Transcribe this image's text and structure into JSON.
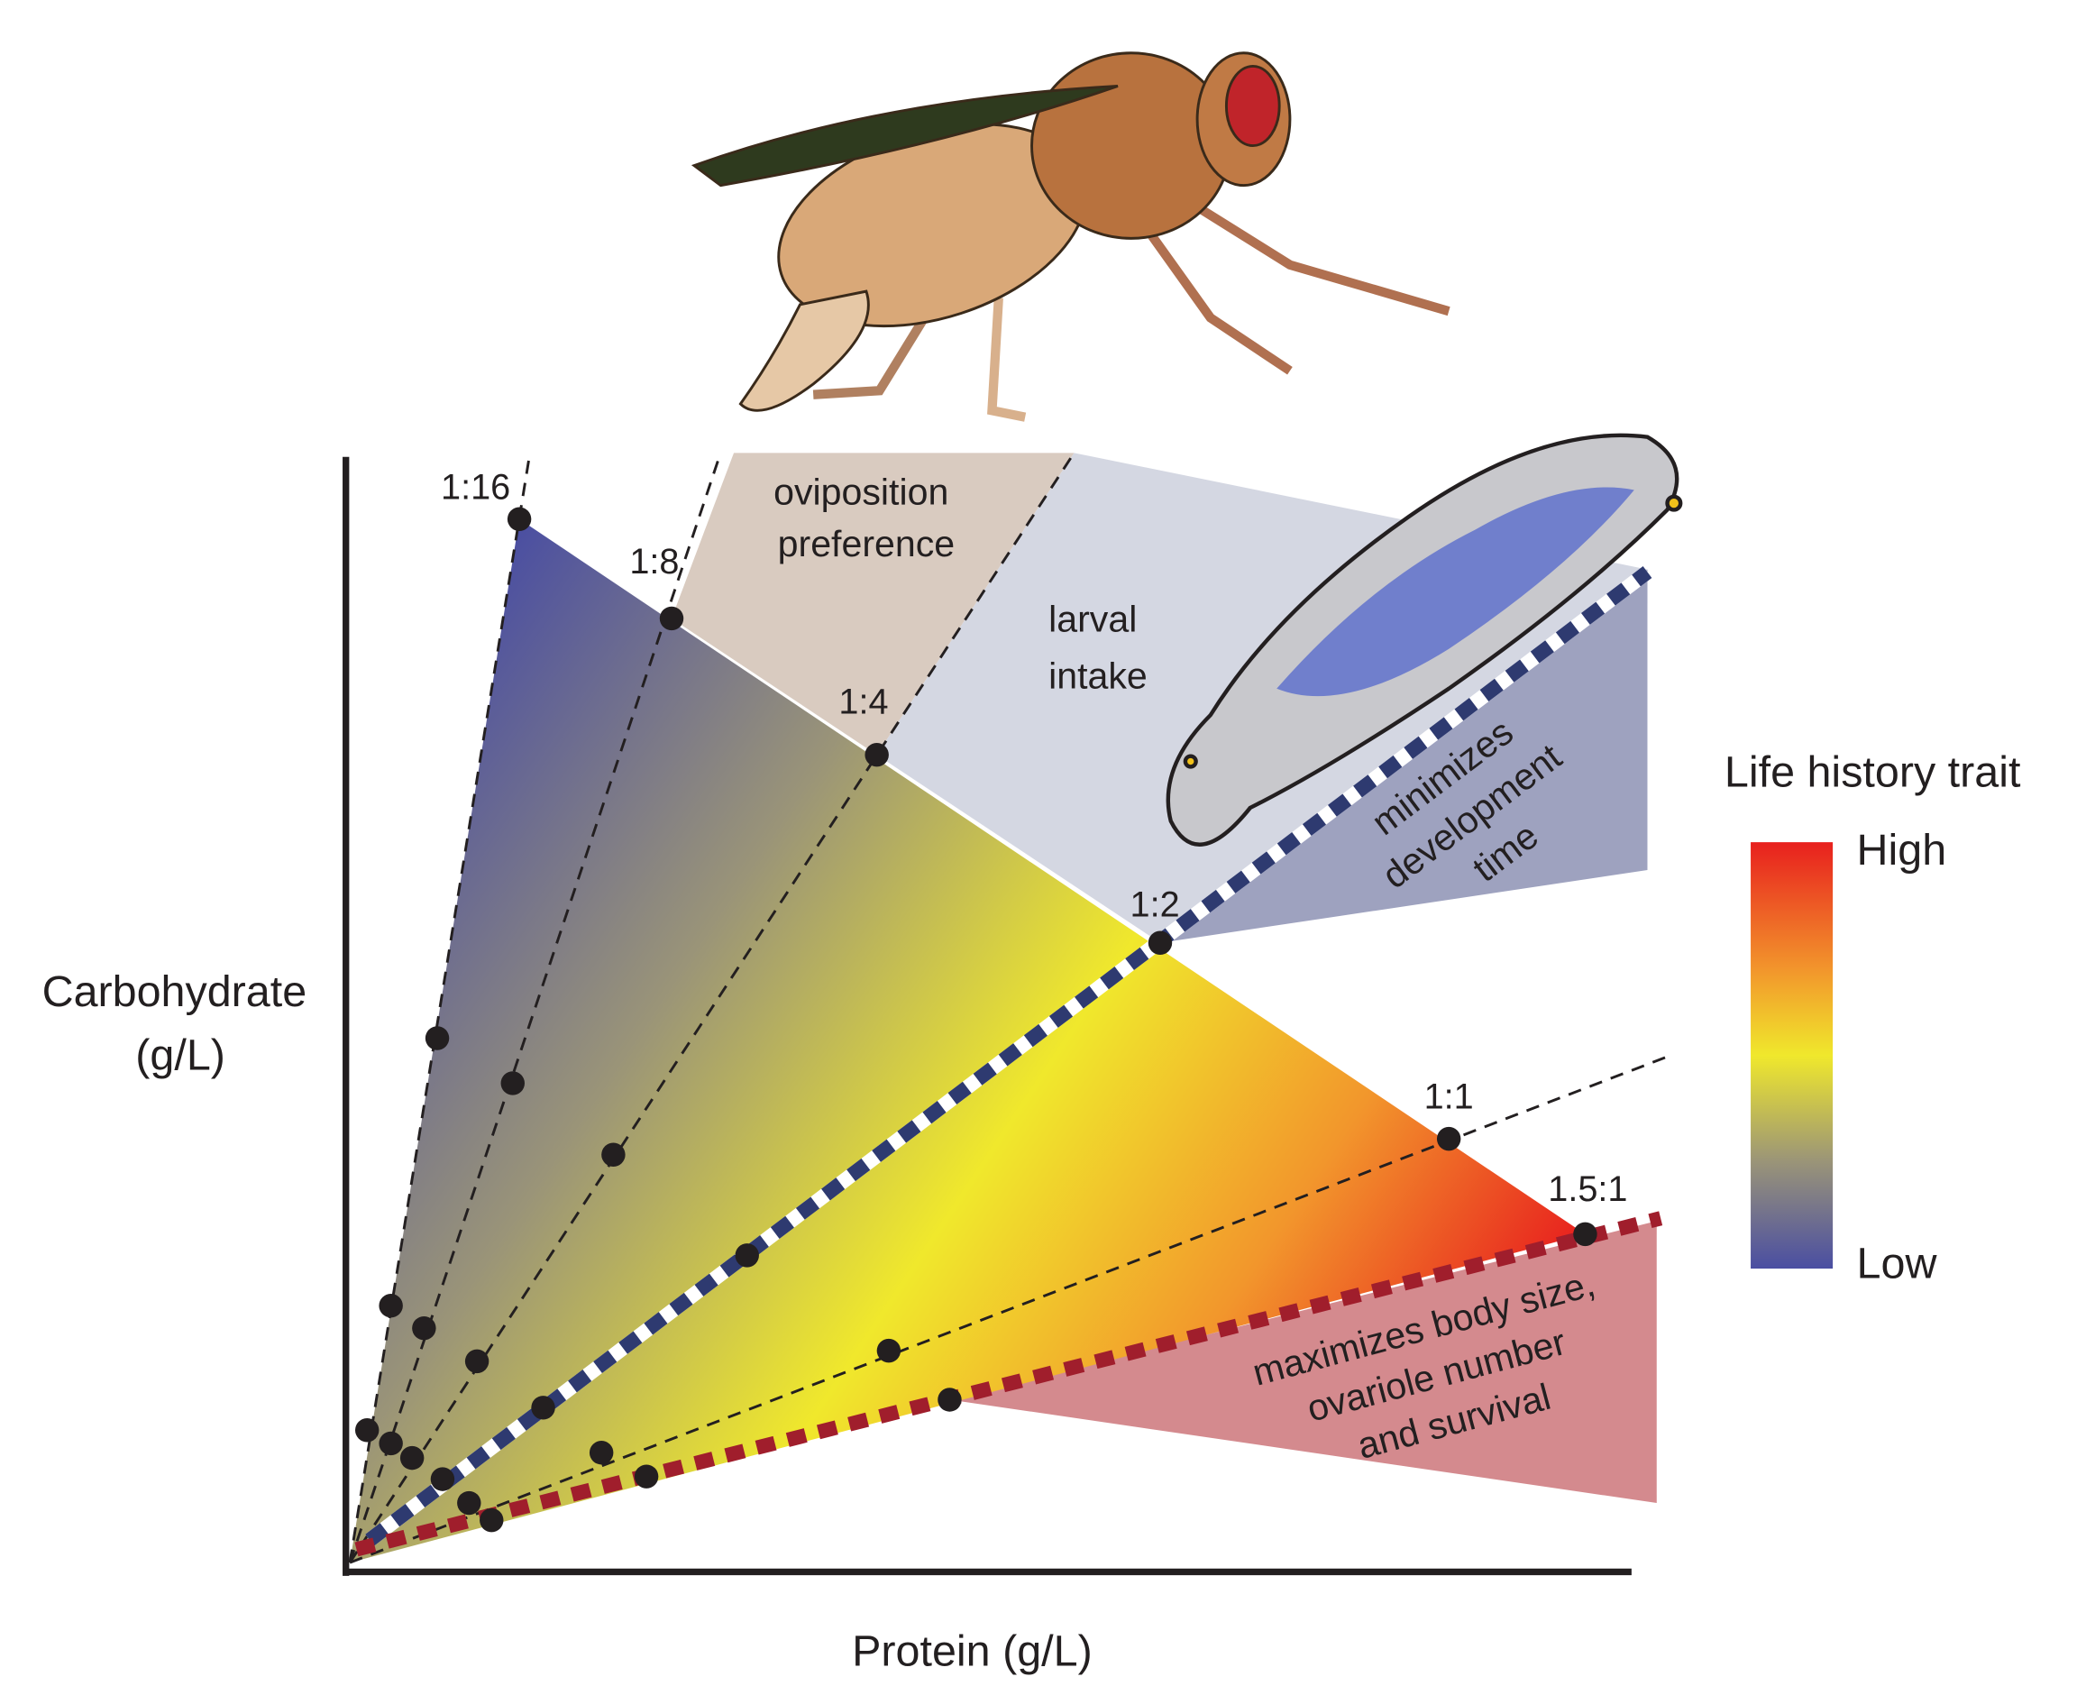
{
  "axes": {
    "y_label": [
      "Carbohydrate",
      "(g/L)"
    ],
    "x_label": "Protein (g/L)"
  },
  "ratios": [
    "1:16",
    "1:8",
    "1:4",
    "1:2",
    "1:1",
    "1.5:1"
  ],
  "regions": {
    "oviposition": [
      "oviposition",
      "preference"
    ],
    "larval": [
      "larval",
      "intake"
    ],
    "development": [
      "minimizes",
      "development",
      "time"
    ],
    "body_size": [
      "maximizes body size,",
      "ovariole number",
      "and survival"
    ]
  },
  "legend": {
    "title": "Life history trait",
    "high": "High",
    "low": "Low"
  }
}
